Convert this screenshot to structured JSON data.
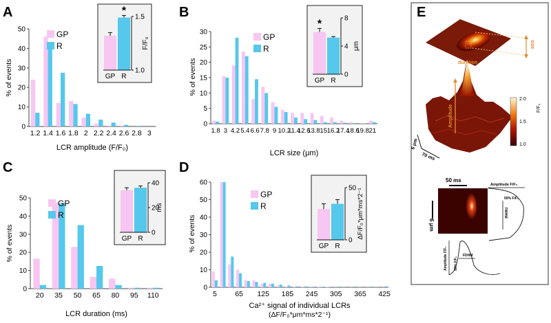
{
  "colors": {
    "gp": "#f7c6f2",
    "r": "#55c8ec",
    "inset_bg": "#f2f2f2",
    "axis": "#444444"
  },
  "chart_data": [
    {
      "panel_letter": "A",
      "type": "bar",
      "categories": [
        "1.2",
        "1.4",
        "1.6",
        "1.8",
        "2",
        "2.2",
        "2.4",
        "2.6",
        "2.8",
        "3"
      ],
      "series": [
        {
          "name": "GP",
          "values": [
            24,
            46,
            12,
            13,
            4.5,
            1.5,
            0.5,
            0.5,
            0,
            0
          ]
        },
        {
          "name": "R",
          "values": [
            7,
            40.5,
            27.5,
            11.5,
            6.5,
            3.5,
            2,
            0.8,
            0.3,
            0
          ]
        }
      ],
      "ylabel": "% of events",
      "xlabel": "LCR amplitude (F/F₀)",
      "ylim": [
        0,
        50
      ],
      "yticks": [
        0,
        10,
        20,
        30,
        40,
        50
      ],
      "legend": [
        "GP",
        "R"
      ],
      "inset": {
        "categories": [
          "GP",
          "R"
        ],
        "values": [
          1.32,
          1.49
        ],
        "errors": [
          0.03,
          0.02
        ],
        "ylim": [
          1.0,
          1.5
        ],
        "yticks": [
          "1.0",
          "1.5"
        ],
        "ylabel": "F/F₀",
        "annotation": "*"
      }
    },
    {
      "panel_letter": "B",
      "type": "bar",
      "categories": [
        "1.8",
        "3",
        "4.2",
        "5.4",
        "6.6",
        "7.8",
        "9",
        "10.2",
        "11.4",
        "12.6",
        "13.8",
        "15",
        "16.2",
        "17.4",
        "18.6",
        "19.8",
        "21"
      ],
      "series": [
        {
          "name": "GP",
          "values": [
            1,
            15.5,
            19,
            23.5,
            8,
            12,
            7,
            4.5,
            3.5,
            3.5,
            3.5,
            2.5,
            2,
            1,
            0.5,
            0.3,
            1
          ]
        },
        {
          "name": "R",
          "values": [
            0.7,
            15,
            28,
            22,
            14.5,
            10,
            5.5,
            3.8,
            2,
            1.5,
            1.2,
            0.5,
            0.5,
            0.3,
            0.2,
            0.1,
            0.5
          ]
        }
      ],
      "ylabel": "% of events",
      "xlabel": "LCR size (μm)",
      "ylim": [
        0,
        30
      ],
      "yticks": [
        0,
        5,
        10,
        15,
        20,
        25,
        30
      ],
      "legend": [
        "GP",
        "R"
      ],
      "inset": {
        "categories": [
          "GP",
          "R"
        ],
        "values": [
          6.0,
          5.2
        ],
        "errors": [
          0.5,
          0.15
        ],
        "ylim": [
          0,
          8
        ],
        "yticks": [
          "0",
          "4",
          "8"
        ],
        "ylabel": "μm",
        "annotation": "*"
      }
    },
    {
      "panel_letter": "C",
      "type": "bar",
      "categories": [
        "20",
        "35",
        "50",
        "65",
        "80",
        "95",
        "110"
      ],
      "series": [
        {
          "name": "GP",
          "values": [
            16.5,
            47.5,
            23,
            6.5,
            5.5,
            0.5,
            0.5
          ]
        },
        {
          "name": "R",
          "values": [
            2,
            47,
            35,
            12.5,
            2,
            0.5,
            0.5
          ]
        }
      ],
      "ylabel": "% of events",
      "xlabel": "LCR duration (ms)",
      "ylim": [
        0,
        50
      ],
      "yticks": [
        0,
        10,
        20,
        30,
        40,
        50
      ],
      "legend": [
        "GP",
        "R"
      ],
      "inset": {
        "categories": [
          "GP",
          "R"
        ],
        "values": [
          34,
          36
        ],
        "errors": [
          2,
          1.5
        ],
        "ylim": [
          0,
          40
        ],
        "yticks": [
          "0",
          "20",
          "40"
        ],
        "ylabel": "ms"
      }
    },
    {
      "panel_letter": "D",
      "type": "bar",
      "categories": [
        "5",
        "25",
        "45",
        "65",
        "85",
        "105",
        "125",
        "145",
        "165",
        "185",
        "205",
        "225",
        "245",
        "265",
        "285",
        "305",
        "325",
        "345",
        "365",
        "385",
        "405",
        "425"
      ],
      "tick_labels": [
        "5",
        "65",
        "125",
        "185",
        "245",
        "305",
        "365",
        "425"
      ],
      "series": [
        {
          "name": "GP",
          "values": [
            9,
            60,
            13,
            10,
            4,
            4,
            2,
            2,
            1,
            0.5,
            0.4,
            0.3,
            0.3,
            0.2,
            0.2,
            0.1,
            0.1,
            0.1,
            0.1,
            0.1,
            0.1,
            0.1
          ]
        },
        {
          "name": "R",
          "values": [
            4,
            60,
            17.5,
            8,
            3.5,
            3,
            2.5,
            2,
            1.5,
            1,
            0.5,
            0.4,
            0.3,
            0.2,
            0.2,
            0.1,
            0.1,
            0.1,
            0.1,
            0.1,
            0.1,
            0.5
          ]
        }
      ],
      "ylabel": "% of events",
      "xlabel": "Ca²⁺ signal of individual LCRs",
      "xlabel2": "(ΔF/F₀*μm*ms*2⁻¹)",
      "ylim": [
        0,
        60
      ],
      "yticks": [
        0,
        10,
        20,
        30,
        40,
        50,
        60
      ],
      "legend": [
        "GP",
        "R"
      ],
      "inset": {
        "categories": [
          "GP",
          "R"
        ],
        "values": [
          29.5,
          34.5
        ],
        "errors": [
          5,
          4
        ],
        "ylim": [
          0,
          50
        ],
        "yticks": [
          "0",
          "50"
        ],
        "ylabel": "ΔF/F₀*μm*ms*2⁻¹"
      }
    }
  ],
  "panel_e": {
    "letter": "E",
    "size_label": "size",
    "duration_label": "duration",
    "amplitude_label": "Amplitude",
    "scale_6um": "6 μm",
    "scale_70ms": "70 ms",
    "colorbar_label": "F/F₀",
    "colorbar_ticks": [
      "2.0",
      "1.5",
      "1.0"
    ],
    "scale_50ms": "50 ms",
    "vertical_scale": "6 μm",
    "amp_label": "Amplitude  F/F₀",
    "half_label": "50% F/F₀",
    "fwhm": "FWHM",
    "fdhm": "FDHM",
    "amp_vert": "Amplitude F/F₀",
    "half_vert": "50% F/F₀"
  }
}
